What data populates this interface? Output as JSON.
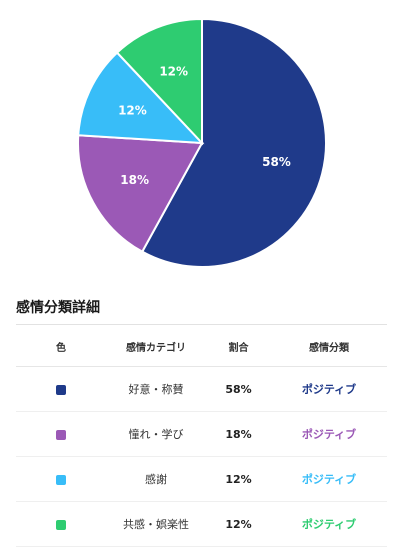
{
  "chart_data": {
    "type": "pie",
    "slices": [
      {
        "label": "好意・称賛",
        "value": 58,
        "display": "58%",
        "color": "#1f3a8a"
      },
      {
        "label": "憧れ・学び",
        "value": 18,
        "display": "18%",
        "color": "#9b59b6"
      },
      {
        "label": "感謝",
        "value": 12,
        "display": "12%",
        "color": "#38bdf8"
      },
      {
        "label": "共感・娯楽性",
        "value": 12,
        "display": "12%",
        "color": "#2ecc71"
      }
    ],
    "start": "top, clockwise"
  },
  "details": {
    "title": "感情分類詳細",
    "headers": {
      "color": "色",
      "category": "感情カテゴリ",
      "ratio": "割合",
      "classification": "感情分類"
    },
    "rows": [
      {
        "category": "好意・称賛",
        "ratio": "58%",
        "classification": "ポジティブ",
        "swatch": "#1f3a8a",
        "class_color": "#1f3a8a"
      },
      {
        "category": "憧れ・学び",
        "ratio": "18%",
        "classification": "ポジティブ",
        "swatch": "#9b59b6",
        "class_color": "#9b59b6"
      },
      {
        "category": "感謝",
        "ratio": "12%",
        "classification": "ポジティブ",
        "swatch": "#38bdf8",
        "class_color": "#38bdf8"
      },
      {
        "category": "共感・娯楽性",
        "ratio": "12%",
        "classification": "ポジティブ",
        "swatch": "#2ecc71",
        "class_color": "#2ecc71"
      }
    ]
  }
}
